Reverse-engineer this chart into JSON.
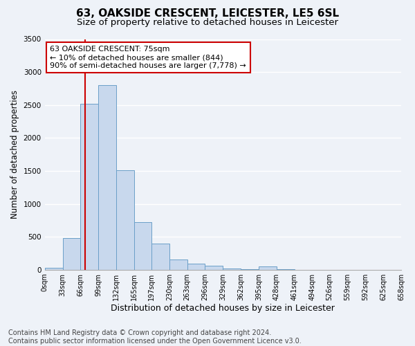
{
  "title_line1": "63, OAKSIDE CRESCENT, LEICESTER, LE5 6SL",
  "title_line2": "Size of property relative to detached houses in Leicester",
  "xlabel": "Distribution of detached houses by size in Leicester",
  "ylabel": "Number of detached properties",
  "bar_color": "#c8d8ed",
  "bar_edge_color": "#6b9fc8",
  "bin_edges": [
    0,
    33,
    66,
    99,
    132,
    165,
    197,
    230,
    263,
    296,
    329,
    362,
    395,
    428,
    461,
    494,
    526,
    559,
    592,
    625,
    658
  ],
  "bar_heights": [
    25,
    475,
    2520,
    2800,
    1510,
    725,
    400,
    155,
    95,
    55,
    20,
    5,
    50,
    5,
    0,
    0,
    0,
    0,
    0,
    0
  ],
  "tick_labels": [
    "0sqm",
    "33sqm",
    "66sqm",
    "99sqm",
    "132sqm",
    "165sqm",
    "197sqm",
    "230sqm",
    "263sqm",
    "296sqm",
    "329sqm",
    "362sqm",
    "395sqm",
    "428sqm",
    "461sqm",
    "494sqm",
    "526sqm",
    "559sqm",
    "592sqm",
    "625sqm",
    "658sqm"
  ],
  "ylim": [
    0,
    3500
  ],
  "yticks": [
    0,
    500,
    1000,
    1500,
    2000,
    2500,
    3000,
    3500
  ],
  "vline_x": 75,
  "vline_color": "#cc0000",
  "annotation_text": "63 OAKSIDE CRESCENT: 75sqm\n← 10% of detached houses are smaller (844)\n90% of semi-detached houses are larger (7,778) →",
  "annotation_box_color": "#ffffff",
  "annotation_box_edge": "#cc0000",
  "footer_line1": "Contains HM Land Registry data © Crown copyright and database right 2024.",
  "footer_line2": "Contains public sector information licensed under the Open Government Licence v3.0.",
  "background_color": "#eef2f8",
  "grid_color": "#ffffff",
  "title_fontsize": 11,
  "subtitle_fontsize": 9.5,
  "axis_label_fontsize": 9,
  "tick_fontsize": 7,
  "footer_fontsize": 7,
  "ylabel_fontsize": 8.5
}
